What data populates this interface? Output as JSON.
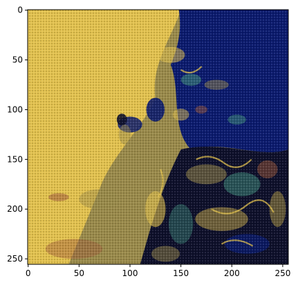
{
  "chart_data": {
    "type": "heatmap",
    "title": "",
    "xlabel": "",
    "ylabel": "",
    "xlim": [
      -0.5,
      255.5
    ],
    "ylim": [
      255.5,
      -0.5
    ],
    "x_ticks": [
      0,
      50,
      100,
      150,
      200,
      250
    ],
    "y_ticks": [
      0,
      50,
      100,
      150,
      200,
      250
    ],
    "x_tick_labels": [
      "0",
      "50",
      "100",
      "150",
      "200",
      "250"
    ],
    "y_tick_labels": [
      "0",
      "50",
      "100",
      "150",
      "200",
      "250"
    ],
    "image": {
      "rows": 256,
      "cols": 256,
      "content": "generated image with checkerboard/dither artifacts: yellow-olive left half, dark navy-blue upper right, mixed blue/yellow/teal textures lower right",
      "colors": {
        "yellow": "#e3c24e",
        "olive": "#9a8a4a",
        "navy": "#0a1a6e",
        "dark": "#0d0f2a",
        "teal": "#3f8a7a",
        "rust": "#a05a3a"
      }
    },
    "grid": false,
    "legend": "none"
  }
}
